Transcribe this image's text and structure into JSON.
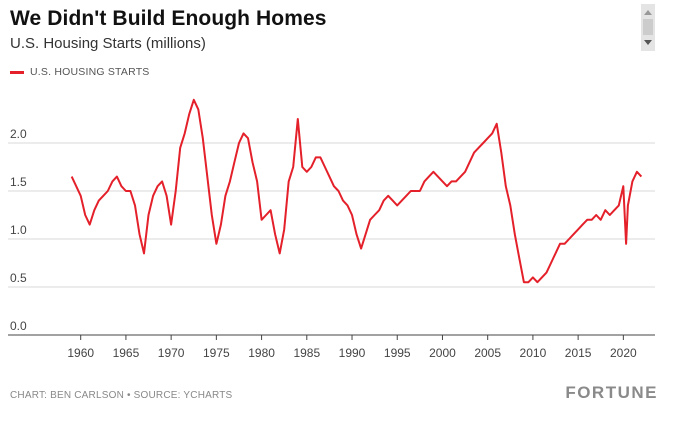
{
  "header": {
    "title": "We Didn't Build Enough Homes",
    "subtitle": "U.S. Housing Starts (millions)"
  },
  "legend": {
    "label": "U.S. HOUSING STARTS"
  },
  "footer": {
    "credit": "CHART: BEN CARLSON • SOURCE: YCHARTS",
    "logo": "FORTUNE"
  },
  "colors": {
    "line": "#e4202a",
    "grid": "#d9d9d9",
    "axis": "#666666"
  },
  "chart_data": {
    "type": "line",
    "title": "We Didn't Build Enough Homes",
    "subtitle": "U.S. Housing Starts (millions)",
    "xlabel": "",
    "ylabel": "",
    "xlim": [
      1955.5,
      2023.5
    ],
    "ylim": [
      0,
      2.5
    ],
    "xticks": [
      1960,
      1965,
      1970,
      1975,
      1980,
      1985,
      1990,
      1995,
      2000,
      2005,
      2010,
      2015,
      2020
    ],
    "yticks": [
      0.0,
      0.5,
      1.0,
      1.5,
      2.0
    ],
    "ytick_labels": [
      "0.0",
      "0.5",
      "1.0",
      "1.5",
      "2.0"
    ],
    "grid": "horizontal",
    "legend_position": "top-left",
    "series": [
      {
        "name": "U.S. HOUSING STARTS",
        "color": "#e4202a",
        "x": [
          1959.0,
          1959.5,
          1960.0,
          1960.5,
          1961.0,
          1961.5,
          1962.0,
          1962.5,
          1963.0,
          1963.5,
          1964.0,
          1964.5,
          1965.0,
          1965.5,
          1966.0,
          1966.5,
          1967.0,
          1967.5,
          1968.0,
          1968.5,
          1969.0,
          1969.5,
          1970.0,
          1970.5,
          1971.0,
          1971.5,
          1972.0,
          1972.5,
          1973.0,
          1973.5,
          1974.0,
          1974.5,
          1975.0,
          1975.5,
          1976.0,
          1976.5,
          1977.0,
          1977.5,
          1978.0,
          1978.5,
          1979.0,
          1979.5,
          1980.0,
          1980.5,
          1981.0,
          1981.5,
          1982.0,
          1982.5,
          1983.0,
          1983.5,
          1984.0,
          1984.5,
          1985.0,
          1985.5,
          1986.0,
          1986.5,
          1987.0,
          1987.5,
          1988.0,
          1988.5,
          1989.0,
          1989.5,
          1990.0,
          1990.5,
          1991.0,
          1991.5,
          1992.0,
          1992.5,
          1993.0,
          1993.5,
          1994.0,
          1994.5,
          1995.0,
          1995.5,
          1996.0,
          1996.5,
          1997.0,
          1997.5,
          1998.0,
          1998.5,
          1999.0,
          1999.5,
          2000.0,
          2000.5,
          2001.0,
          2001.5,
          2002.0,
          2002.5,
          2003.0,
          2003.5,
          2004.0,
          2004.5,
          2005.0,
          2005.5,
          2006.0,
          2006.5,
          2007.0,
          2007.5,
          2008.0,
          2008.5,
          2009.0,
          2009.5,
          2010.0,
          2010.5,
          2011.0,
          2011.5,
          2012.0,
          2012.5,
          2013.0,
          2013.5,
          2014.0,
          2014.5,
          2015.0,
          2015.5,
          2016.0,
          2016.5,
          2017.0,
          2017.5,
          2018.0,
          2018.5,
          2019.0,
          2019.5,
          2020.0,
          2020.3,
          2020.5,
          2021.0,
          2021.5,
          2022.0
        ],
        "values": [
          1.65,
          1.55,
          1.45,
          1.25,
          1.15,
          1.3,
          1.4,
          1.45,
          1.5,
          1.6,
          1.65,
          1.55,
          1.5,
          1.5,
          1.35,
          1.05,
          0.85,
          1.25,
          1.45,
          1.55,
          1.6,
          1.45,
          1.15,
          1.5,
          1.95,
          2.1,
          2.3,
          2.45,
          2.35,
          2.05,
          1.65,
          1.25,
          0.95,
          1.15,
          1.45,
          1.6,
          1.8,
          2.0,
          2.1,
          2.05,
          1.8,
          1.6,
          1.2,
          1.25,
          1.3,
          1.05,
          0.85,
          1.1,
          1.6,
          1.75,
          2.25,
          1.75,
          1.7,
          1.75,
          1.85,
          1.85,
          1.75,
          1.65,
          1.55,
          1.5,
          1.4,
          1.35,
          1.25,
          1.05,
          0.9,
          1.05,
          1.2,
          1.25,
          1.3,
          1.4,
          1.45,
          1.4,
          1.35,
          1.4,
          1.45,
          1.5,
          1.5,
          1.5,
          1.6,
          1.65,
          1.7,
          1.65,
          1.6,
          1.55,
          1.6,
          1.6,
          1.65,
          1.7,
          1.8,
          1.9,
          1.95,
          2.0,
          2.05,
          2.1,
          2.2,
          1.9,
          1.55,
          1.35,
          1.05,
          0.8,
          0.55,
          0.55,
          0.6,
          0.55,
          0.6,
          0.65,
          0.75,
          0.85,
          0.95,
          0.95,
          1.0,
          1.05,
          1.1,
          1.15,
          1.2,
          1.2,
          1.25,
          1.2,
          1.3,
          1.25,
          1.3,
          1.35,
          1.55,
          0.95,
          1.35,
          1.6,
          1.7,
          1.65
        ]
      }
    ]
  }
}
